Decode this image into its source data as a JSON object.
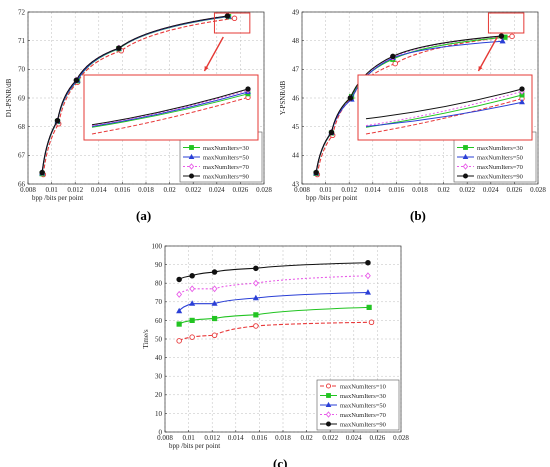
{
  "series_styles": [
    {
      "color": "#e8393a",
      "marker": "circle",
      "dash": "4,2"
    },
    {
      "color": "#22c422",
      "marker": "square",
      "dash": ""
    },
    {
      "color": "#2a3fd6",
      "marker": "triangle",
      "dash": ""
    },
    {
      "color": "#e85ce8",
      "marker": "diamond",
      "dash": "2,2"
    },
    {
      "color": "#111111",
      "marker": "circle-filled",
      "dash": ""
    }
  ],
  "arrow_color": "#e53935",
  "chart_data": [
    {
      "type": "line",
      "panel_label": "(a)",
      "ylabel": "D1-PSNR/dB",
      "xlabel": "bpp  /bits per point",
      "xlim": [
        0.008,
        0.028
      ],
      "ylim": [
        66,
        72
      ],
      "xticks": [
        0.008,
        0.01,
        0.012,
        0.014,
        0.016,
        0.018,
        0.02,
        0.022,
        0.024,
        0.026,
        0.028
      ],
      "xtick_labels": [
        "0.008",
        "0.01",
        "0.012",
        "0.014",
        "0.016",
        "0.018",
        "0.02",
        "0.022",
        "0.024",
        "0.026",
        "0.028"
      ],
      "yticks": [
        66,
        67,
        68,
        69,
        70,
        71,
        72
      ],
      "ytick_labels": [
        "66",
        "67",
        "68",
        "69",
        "70",
        "71",
        "72"
      ],
      "legend_position": "bottom-right",
      "series": [
        {
          "name": "maxNumIters=10",
          "x": [
            0.0093,
            0.0106,
            0.0122,
            0.0159,
            0.0255
          ],
          "y": [
            66.33,
            68.1,
            69.55,
            70.65,
            71.78
          ]
        },
        {
          "name": "maxNumIters=30",
          "x": [
            0.0092,
            0.0105,
            0.0122,
            0.0157,
            0.025
          ],
          "y": [
            66.36,
            68.18,
            69.6,
            70.72,
            71.84
          ]
        },
        {
          "name": "maxNumIters=50",
          "x": [
            0.0092,
            0.0105,
            0.0122,
            0.0157,
            0.025
          ],
          "y": [
            66.38,
            68.19,
            69.61,
            70.73,
            71.85
          ]
        },
        {
          "name": "maxNumIters=70",
          "x": [
            0.0092,
            0.0105,
            0.0121,
            0.0157,
            0.0249
          ],
          "y": [
            66.4,
            68.2,
            69.62,
            70.74,
            71.86
          ]
        },
        {
          "name": "maxNumIters=90",
          "x": [
            0.0092,
            0.0105,
            0.0121,
            0.0157,
            0.0249
          ],
          "y": [
            66.4,
            68.21,
            69.62,
            70.74,
            71.86
          ]
        }
      ],
      "inset": true
    },
    {
      "type": "line",
      "panel_label": "(b)",
      "ylabel": "Y-PSNR/dB",
      "xlabel": "bpp  /bits per point",
      "xlim": [
        0.008,
        0.028
      ],
      "ylim": [
        43,
        49
      ],
      "xticks": [
        0.008,
        0.01,
        0.012,
        0.014,
        0.016,
        0.018,
        0.02,
        0.022,
        0.024,
        0.026,
        0.028
      ],
      "xtick_labels": [
        "0.008",
        "0.01",
        "0.012",
        "0.014",
        "0.016",
        "0.018",
        "0.02",
        "0.022",
        "0.024",
        "0.026",
        "0.028"
      ],
      "yticks": [
        43,
        44,
        45,
        46,
        47,
        48,
        49
      ],
      "ytick_labels": [
        "43",
        "44",
        "45",
        "46",
        "47",
        "48",
        "49"
      ],
      "legend_position": "bottom-right",
      "series": [
        {
          "name": "maxNumIters=10",
          "x": [
            0.0093,
            0.0106,
            0.0122,
            0.0159,
            0.0258
          ],
          "y": [
            43.33,
            44.7,
            46.0,
            47.2,
            48.15
          ]
        },
        {
          "name": "maxNumIters=30",
          "x": [
            0.0092,
            0.0105,
            0.0122,
            0.0157,
            0.0252
          ],
          "y": [
            43.37,
            44.78,
            46.05,
            47.35,
            48.12
          ]
        },
        {
          "name": "maxNumIters=50",
          "x": [
            0.0092,
            0.0105,
            0.0122,
            0.0157,
            0.025
          ],
          "y": [
            43.38,
            44.79,
            45.95,
            47.4,
            47.98
          ]
        },
        {
          "name": "maxNumIters=70",
          "x": [
            0.0092,
            0.0105,
            0.0121,
            0.0157,
            0.0249
          ],
          "y": [
            43.4,
            44.8,
            46.0,
            47.42,
            48.15
          ]
        },
        {
          "name": "maxNumIters=90",
          "x": [
            0.0092,
            0.0105,
            0.0121,
            0.0157,
            0.0249
          ],
          "y": [
            43.4,
            44.8,
            46.0,
            47.45,
            48.16
          ]
        }
      ],
      "inset": true
    },
    {
      "type": "line",
      "panel_label": "(c)",
      "ylabel": "Time/s",
      "xlabel": "bpp  /bits per point",
      "xlim": [
        0.008,
        0.028
      ],
      "ylim": [
        0,
        100
      ],
      "xticks": [
        0.008,
        0.01,
        0.012,
        0.014,
        0.016,
        0.018,
        0.02,
        0.022,
        0.024,
        0.026,
        0.028
      ],
      "xtick_labels": [
        "0.008",
        "0.01",
        "0.012",
        "0.014",
        "0.016",
        "0.018",
        "0.02",
        "0.022",
        "0.024",
        "0.026",
        "0.028"
      ],
      "yticks": [
        0,
        10,
        20,
        30,
        40,
        50,
        60,
        70,
        80,
        90,
        100
      ],
      "ytick_labels": [
        "0",
        "10",
        "20",
        "30",
        "40",
        "50",
        "60",
        "70",
        "80",
        "90",
        "100"
      ],
      "legend_position": "bottom-right",
      "series": [
        {
          "name": "maxNumIters=10",
          "x": [
            0.0092,
            0.0103,
            0.0122,
            0.0157,
            0.0255
          ],
          "y": [
            49,
            51,
            52,
            57,
            59
          ]
        },
        {
          "name": "maxNumIters=30",
          "x": [
            0.0092,
            0.0103,
            0.0122,
            0.0157,
            0.0253
          ],
          "y": [
            58,
            60,
            61,
            63,
            67
          ]
        },
        {
          "name": "maxNumIters=50",
          "x": [
            0.0092,
            0.0103,
            0.0122,
            0.0157,
            0.0252
          ],
          "y": [
            65,
            69,
            69,
            72,
            75
          ]
        },
        {
          "name": "maxNumIters=70",
          "x": [
            0.0092,
            0.0103,
            0.0122,
            0.0157,
            0.0252
          ],
          "y": [
            74,
            77,
            77,
            80,
            84
          ]
        },
        {
          "name": "maxNumIters=90",
          "x": [
            0.0092,
            0.0103,
            0.0122,
            0.0157,
            0.0252
          ],
          "y": [
            82,
            84,
            86,
            88,
            91
          ]
        }
      ],
      "inset": false
    }
  ]
}
